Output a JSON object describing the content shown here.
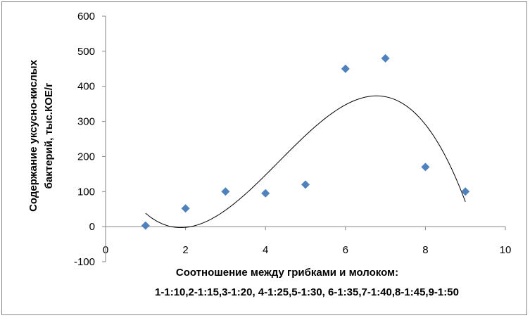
{
  "chart_data": {
    "type": "scatter",
    "xlabel_lines": [
      "Соотношение между грибками и молоком:",
      "1-1:10,2-1:15,3-1:20, 4-1:25,5-1:30, 6-1:35,7-1:40,8-1:45,9-1:50"
    ],
    "ylabel_lines": [
      "Содержание уксусно-кислых",
      "бактерий, тыс.КОЕ/г"
    ],
    "xlim": [
      0,
      10
    ],
    "ylim": [
      -100,
      600
    ],
    "x_ticks": [
      0,
      2,
      4,
      6,
      8,
      10
    ],
    "y_ticks": [
      -100,
      0,
      100,
      200,
      300,
      400,
      500,
      600
    ],
    "grid": {
      "horizontal": false,
      "vertical": false
    },
    "series": [
      {
        "marker": "diamond",
        "color": "#4F81BD",
        "x": [
          1,
          2,
          3,
          4,
          5,
          6,
          7,
          8,
          9
        ],
        "y": [
          3,
          52,
          100,
          95,
          120,
          450,
          480,
          170,
          100
        ]
      }
    ],
    "trendline": {
      "type": "polynomial",
      "order": 3,
      "color": "#000000",
      "x_range": [
        1,
        9
      ]
    }
  }
}
